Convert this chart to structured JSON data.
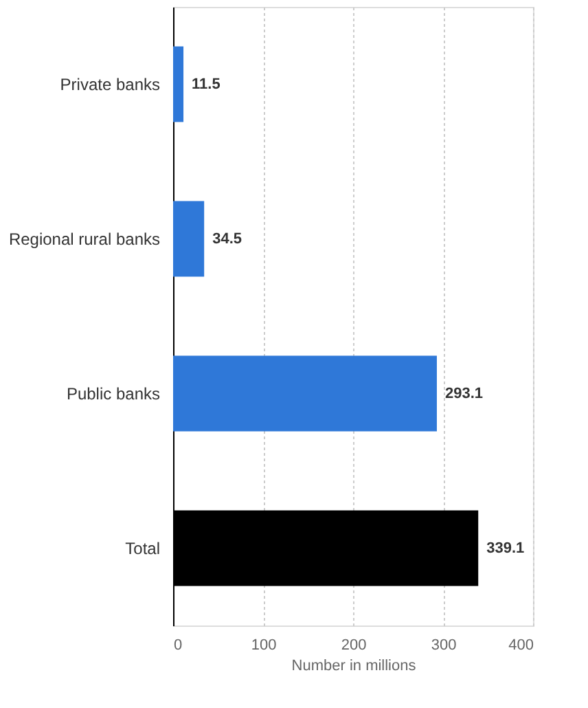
{
  "chart_data": {
    "type": "bar",
    "orientation": "horizontal",
    "xlabel": "Number in millions",
    "categories": [
      "Private banks",
      "Regional rural banks",
      "Public banks",
      "Total"
    ],
    "values": [
      11.5,
      34.5,
      293.1,
      339.1
    ],
    "colors": [
      "#2f78d8",
      "#2f78d8",
      "#2f78d8",
      "#000000"
    ],
    "xlim": [
      0,
      400
    ],
    "xticks": [
      0,
      100,
      200,
      300,
      400
    ],
    "grid": "x",
    "data_labels": true
  }
}
